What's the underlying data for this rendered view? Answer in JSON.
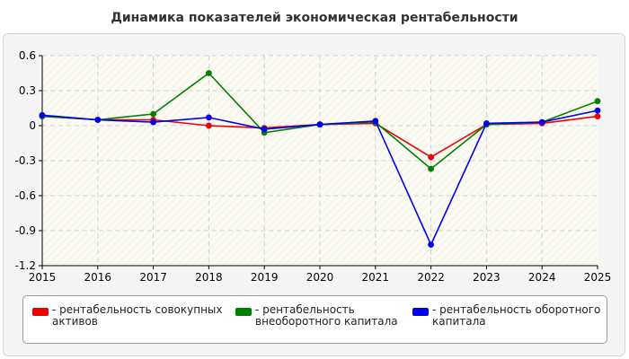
{
  "chart_data": {
    "type": "line",
    "title": "Динамика показателей экономическая рентабельности",
    "x": [
      "2015",
      "2016",
      "2017",
      "2018",
      "2019",
      "2020",
      "2021",
      "2022",
      "2023",
      "2024",
      "2025"
    ],
    "y_ticks": [
      "0.6",
      "0.3",
      "0",
      "-0.3",
      "-0.6",
      "-0.9",
      "-1.2"
    ],
    "ylim": [
      -1.2,
      0.6
    ],
    "grid": true,
    "legend_position": "bottom",
    "series": [
      {
        "name": "рентабельность совокупных активов",
        "color": "#ee0000",
        "values": [
          0.08,
          0.05,
          0.05,
          0.0,
          -0.02,
          0.01,
          0.02,
          -0.27,
          0.01,
          0.02,
          0.08
        ]
      },
      {
        "name": "рентабельность внеоборотного капитала",
        "color": "#008000",
        "values": [
          0.08,
          0.05,
          0.1,
          0.45,
          -0.06,
          0.01,
          0.03,
          -0.37,
          0.01,
          0.03,
          0.21
        ]
      },
      {
        "name": "рентабельность оборотного капитала",
        "color": "#0000ee",
        "values": [
          0.09,
          0.05,
          0.03,
          0.07,
          -0.03,
          0.01,
          0.04,
          -1.02,
          0.02,
          0.03,
          0.13
        ]
      }
    ]
  }
}
